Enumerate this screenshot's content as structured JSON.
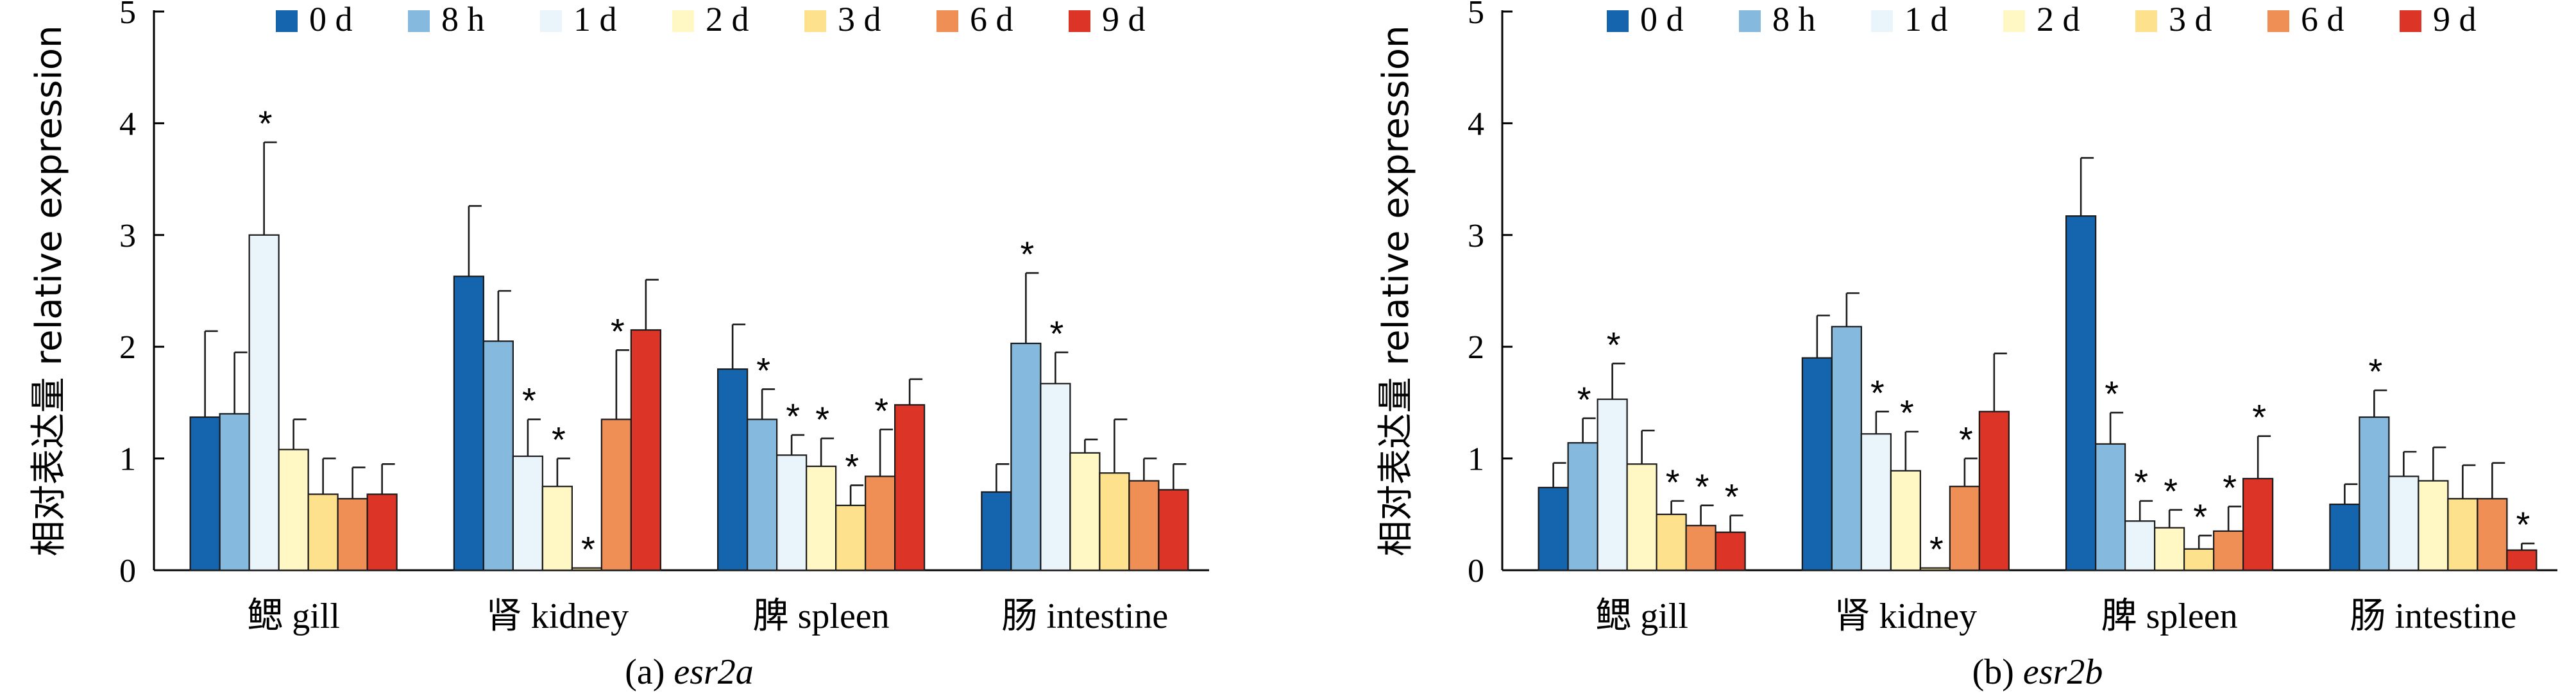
{
  "legend_labels": [
    "0 d",
    "8 h",
    "1 d",
    "2 d",
    "3 d",
    "6 d",
    "9 d"
  ],
  "colors": [
    "#1464ae",
    "#86b9de",
    "#e9f4fb",
    "#fff8c4",
    "#fde18d",
    "#ef8f55",
    "#dc3426"
  ],
  "chart_data": [
    {
      "type": "bar",
      "categories": [
        "鳃 gill",
        "肾 kidney",
        "脾 spleen",
        "肠 intestine"
      ],
      "ylabel": "相对表达量 relative expression",
      "ylim": [
        0,
        5
      ],
      "yticks": [
        "0",
        "1",
        "2",
        "3",
        "4",
        "5"
      ],
      "legend_position": "top",
      "caption_prefix": "(a) ",
      "caption_gene": "esr2a",
      "series": [
        {
          "name": "0 d",
          "values": [
            1.37,
            2.63,
            1.8,
            0.7
          ],
          "errors": [
            0.77,
            0.63,
            0.4,
            0.25
          ],
          "sig": [
            false,
            false,
            false,
            false
          ]
        },
        {
          "name": "8 h",
          "values": [
            1.4,
            2.05,
            1.35,
            2.03
          ],
          "errors": [
            0.55,
            0.45,
            0.27,
            0.63
          ],
          "sig": [
            false,
            false,
            true,
            true
          ]
        },
        {
          "name": "1 d",
          "values": [
            3.0,
            1.02,
            1.03,
            1.67
          ],
          "errors": [
            0.83,
            0.33,
            0.18,
            0.28
          ],
          "sig": [
            true,
            true,
            true,
            true
          ]
        },
        {
          "name": "2 d",
          "values": [
            1.08,
            0.75,
            0.93,
            1.05
          ],
          "errors": [
            0.27,
            0.25,
            0.25,
            0.12
          ],
          "sig": [
            false,
            true,
            true,
            false
          ]
        },
        {
          "name": "3 d",
          "values": [
            0.68,
            0.02,
            0.58,
            0.87
          ],
          "errors": [
            0.32,
            0.0,
            0.18,
            0.48
          ],
          "sig": [
            false,
            true,
            true,
            false
          ]
        },
        {
          "name": "6 d",
          "values": [
            0.64,
            1.35,
            0.84,
            0.8
          ],
          "errors": [
            0.28,
            0.62,
            0.42,
            0.2
          ],
          "sig": [
            false,
            true,
            true,
            false
          ]
        },
        {
          "name": "9 d",
          "values": [
            0.68,
            2.15,
            1.48,
            0.72
          ],
          "errors": [
            0.27,
            0.45,
            0.23,
            0.23
          ],
          "sig": [
            false,
            false,
            false,
            false
          ]
        }
      ]
    },
    {
      "type": "bar",
      "categories": [
        "鳃 gill",
        "肾 kidney",
        "脾 spleen",
        "肠 intestine"
      ],
      "ylabel": "相对表达量 relative expression",
      "ylim": [
        0,
        5
      ],
      "yticks": [
        "0",
        "1",
        "2",
        "3",
        "4",
        "5"
      ],
      "legend_position": "top",
      "caption_prefix": "(b) ",
      "caption_gene": "esr2b",
      "series": [
        {
          "name": "0 d",
          "values": [
            0.74,
            1.9,
            3.17,
            0.59
          ],
          "errors": [
            0.22,
            0.38,
            0.52,
            0.18
          ],
          "sig": [
            false,
            false,
            false,
            false
          ]
        },
        {
          "name": "8 h",
          "values": [
            1.14,
            2.18,
            1.13,
            1.37
          ],
          "errors": [
            0.22,
            0.3,
            0.28,
            0.24
          ],
          "sig": [
            true,
            false,
            true,
            true
          ]
        },
        {
          "name": "1 d",
          "values": [
            1.53,
            1.22,
            0.44,
            0.84
          ],
          "errors": [
            0.32,
            0.2,
            0.18,
            0.22
          ],
          "sig": [
            true,
            true,
            true,
            false
          ]
        },
        {
          "name": "2 d",
          "values": [
            0.95,
            0.89,
            0.38,
            0.8
          ],
          "errors": [
            0.3,
            0.35,
            0.16,
            0.3
          ],
          "sig": [
            false,
            true,
            true,
            false
          ]
        },
        {
          "name": "3 d",
          "values": [
            0.5,
            0.02,
            0.19,
            0.64
          ],
          "errors": [
            0.12,
            0.0,
            0.12,
            0.3
          ],
          "sig": [
            true,
            true,
            true,
            false
          ]
        },
        {
          "name": "6 d",
          "values": [
            0.4,
            0.75,
            0.35,
            0.64
          ],
          "errors": [
            0.18,
            0.25,
            0.22,
            0.32
          ],
          "sig": [
            true,
            true,
            true,
            false
          ]
        },
        {
          "name": "9 d",
          "values": [
            0.34,
            1.42,
            0.82,
            0.18
          ],
          "errors": [
            0.15,
            0.52,
            0.38,
            0.06
          ],
          "sig": [
            true,
            false,
            true,
            true
          ]
        }
      ]
    }
  ]
}
